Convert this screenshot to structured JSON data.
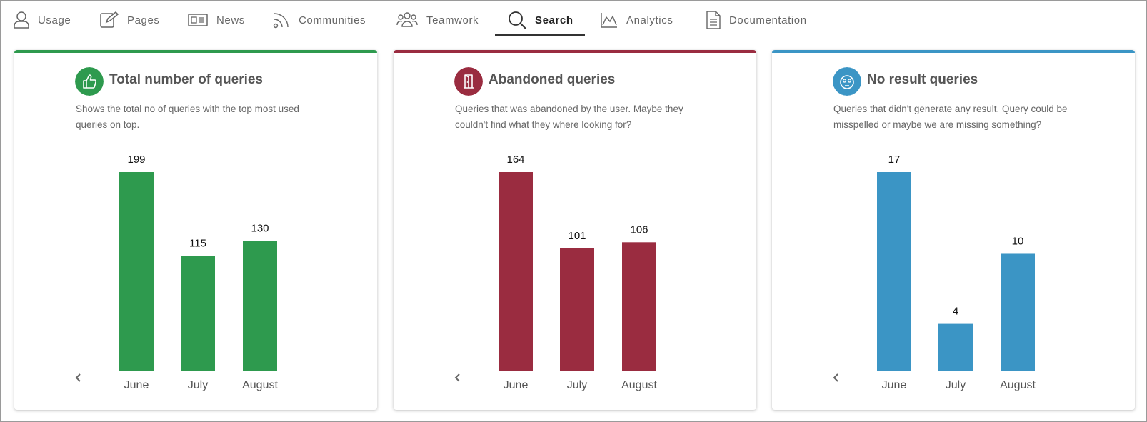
{
  "nav": {
    "tabs": [
      {
        "label": "Usage"
      },
      {
        "label": "Pages"
      },
      {
        "label": "News"
      },
      {
        "label": "Communities"
      },
      {
        "label": "Teamwork"
      },
      {
        "label": "Search",
        "active": true
      },
      {
        "label": "Analytics"
      },
      {
        "label": "Documentation"
      }
    ]
  },
  "chart_data": [
    {
      "type": "bar",
      "title": "Total number of queries",
      "subtitle": "Shows the total no of queries with the top most used queries on top.",
      "categories": [
        "June",
        "July",
        "August"
      ],
      "values": [
        199,
        115,
        130
      ],
      "color": "#2e9a4e"
    },
    {
      "type": "bar",
      "title": "Abandoned queries",
      "subtitle": "Queries that was abandoned by the user. Maybe they couldn't find what they where looking for?",
      "categories": [
        "June",
        "July",
        "August"
      ],
      "values": [
        164,
        101,
        106
      ],
      "color": "#9a2c40"
    },
    {
      "type": "bar",
      "title": "No result queries",
      "subtitle": "Queries that didn't generate any result. Query could be misspelled or maybe we are missing something?",
      "categories": [
        "June",
        "July",
        "August"
      ],
      "values": [
        17,
        4,
        10
      ],
      "color": "#3b95c5"
    }
  ]
}
